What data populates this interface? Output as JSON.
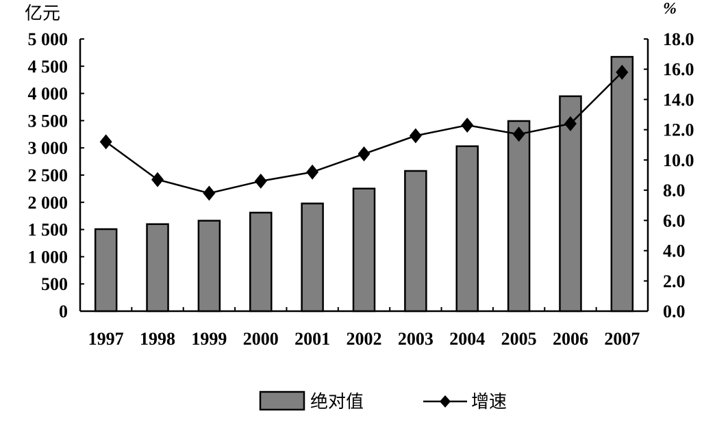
{
  "chart_data": {
    "type": "bar+line",
    "title": "",
    "categories": [
      "1997",
      "1998",
      "1999",
      "2000",
      "2001",
      "2002",
      "2003",
      "2004",
      "2005",
      "2006",
      "2007"
    ],
    "y_left": {
      "unit_label": "亿元",
      "range": [
        0,
        5000
      ],
      "ticks": [
        "0",
        "500",
        "1 000",
        "1 500",
        "2 000",
        "2 500",
        "3 000",
        "3 500",
        "4 000",
        "4 500",
        "5 000"
      ]
    },
    "y_right": {
      "unit_label": "%",
      "range": [
        0,
        18
      ],
      "ticks": [
        "0.0",
        "2.0",
        "4.0",
        "6.0",
        "8.0",
        "10.0",
        "12.0",
        "14.0",
        "16.0",
        "18.0"
      ]
    },
    "series": [
      {
        "name": "绝对值",
        "type": "bar",
        "axis": "left",
        "color": "#808080",
        "values": [
          1507,
          1599,
          1662,
          1810,
          1978,
          2252,
          2576,
          3030,
          3493,
          3948,
          4672
        ]
      },
      {
        "name": "增速",
        "type": "line",
        "axis": "right",
        "marker": "diamond",
        "color": "#000000",
        "values": [
          11.2,
          8.7,
          7.8,
          8.6,
          9.2,
          10.4,
          11.6,
          12.3,
          11.7,
          12.4,
          15.8
        ]
      }
    ],
    "grid": false,
    "legend": "bottom"
  }
}
